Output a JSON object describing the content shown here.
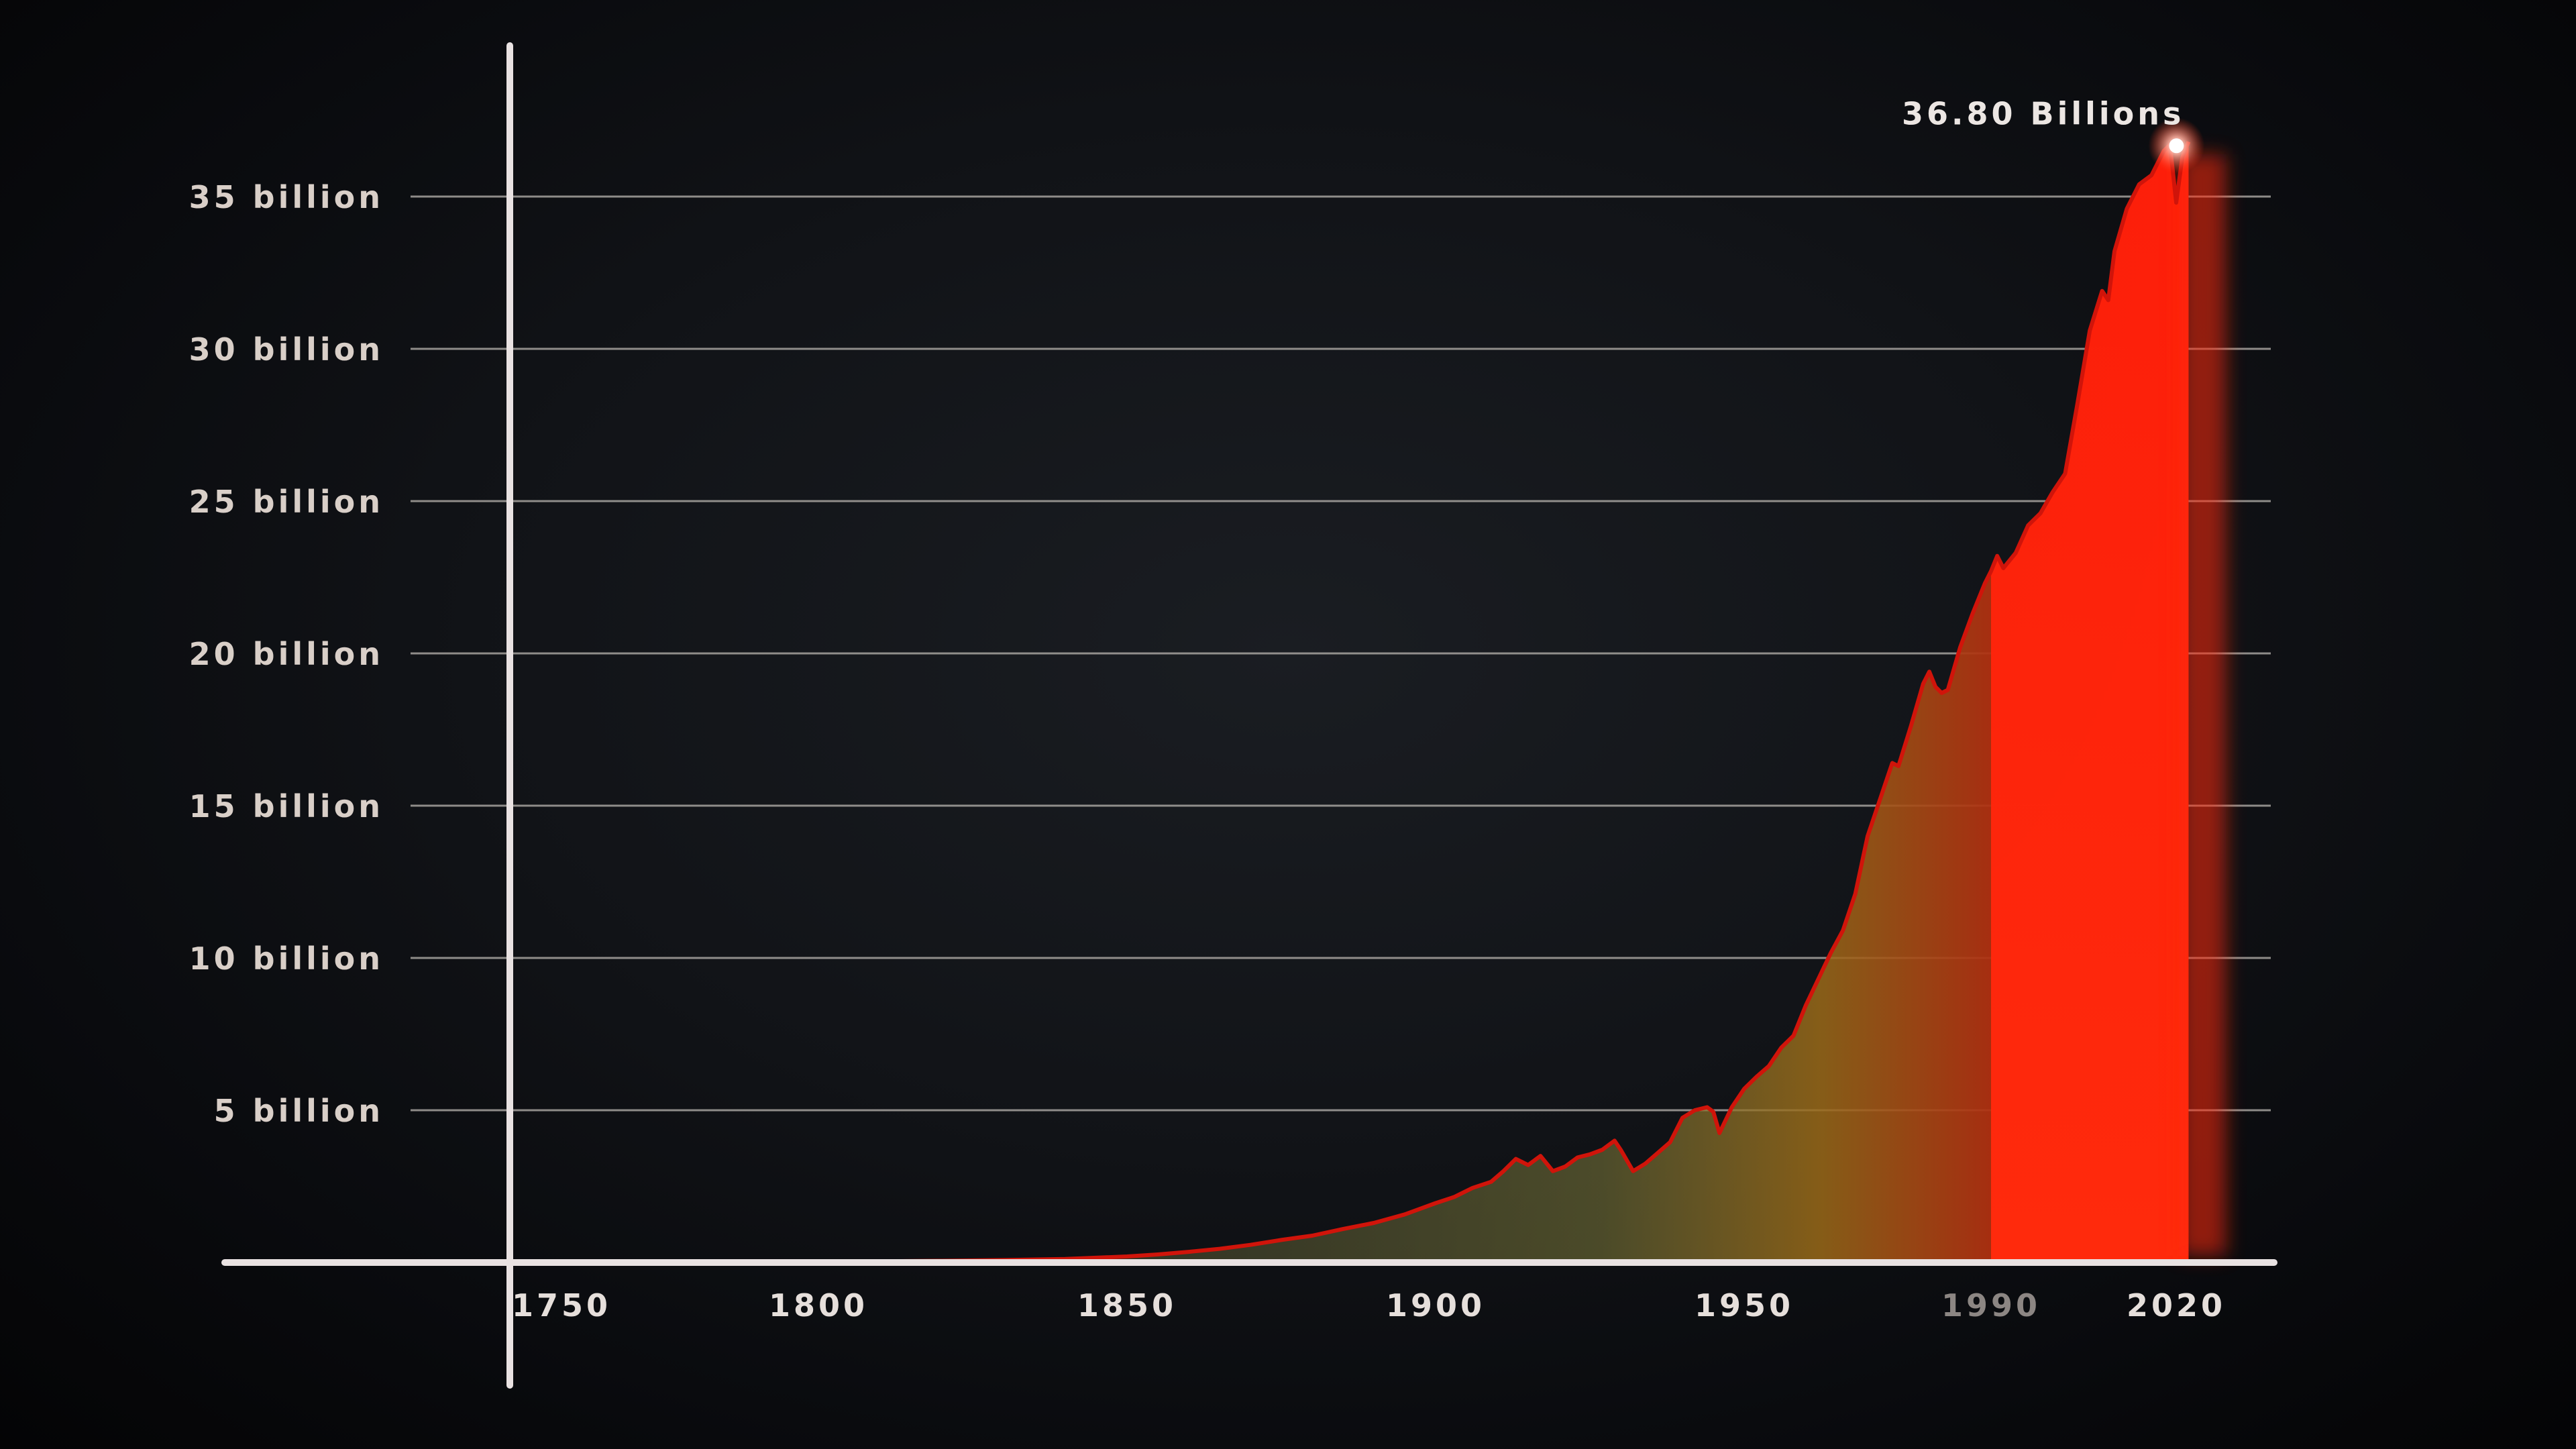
{
  "chart_data": {
    "type": "area",
    "title": "",
    "xlabel": "",
    "ylabel": "",
    "xlim": [
      1740,
      2040
    ],
    "ylim": [
      0,
      35000000000
    ],
    "grid": true,
    "x_ticks": [
      {
        "value": 1750,
        "label": "1750",
        "highlight": false
      },
      {
        "value": 1800,
        "label": "1800",
        "highlight": false
      },
      {
        "value": 1850,
        "label": "1850",
        "highlight": false
      },
      {
        "value": 1900,
        "label": "1900",
        "highlight": false
      },
      {
        "value": 1950,
        "label": "1950",
        "highlight": false
      },
      {
        "value": 1990,
        "label": "1990",
        "highlight": true
      },
      {
        "value": 2020,
        "label": "2020",
        "highlight": false
      }
    ],
    "y_ticks": [
      {
        "value": 5000000000,
        "label": "5 billion"
      },
      {
        "value": 10000000000,
        "label": "10 billion"
      },
      {
        "value": 15000000000,
        "label": "15 billion"
      },
      {
        "value": 20000000000,
        "label": "20 billion"
      },
      {
        "value": 25000000000,
        "label": "25 billion"
      },
      {
        "value": 30000000000,
        "label": "30 billion"
      },
      {
        "value": 35000000000,
        "label": "35 billion"
      }
    ],
    "highlight_range": [
      1990,
      2022
    ],
    "annotation": {
      "x": 2022,
      "y": 36800000000,
      "text": "36.80 Billions"
    },
    "series": [
      {
        "x": [
          1750,
          1760,
          1770,
          1780,
          1790,
          1800,
          1810,
          1820,
          1830,
          1840,
          1850,
          1855,
          1860,
          1865,
          1870,
          1875,
          1880,
          1885,
          1890,
          1895,
          1900,
          1903,
          1906,
          1909,
          1911,
          1913,
          1915,
          1917,
          1919,
          1921,
          1923,
          1925,
          1927,
          1929,
          1930,
          1932,
          1934,
          1936,
          1938,
          1940,
          1942,
          1944,
          1945,
          1946,
          1948,
          1950,
          1952,
          1954,
          1956,
          1958,
          1960,
          1962,
          1964,
          1966,
          1968,
          1970,
          1972,
          1974,
          1975,
          1977,
          1979,
          1980,
          1981,
          1982,
          1983,
          1985,
          1987,
          1989,
          1990,
          1991,
          1992,
          1994,
          1996,
          1998,
          2000,
          2002,
          2004,
          2006,
          2008,
          2009,
          2010,
          2012,
          2014,
          2016,
          2018,
          2019,
          2020,
          2021,
          2022
        ],
        "values": [
          9000000,
          10000000,
          12000000,
          15000000,
          20000000,
          28000000,
          40000000,
          55000000,
          80000000,
          115000000,
          198000000,
          265000000,
          350000000,
          450000000,
          580000000,
          740000000,
          880000000,
          1100000000,
          1300000000,
          1580000000,
          1950000000,
          2150000000,
          2450000000,
          2650000000,
          3000000000,
          3400000000,
          3200000000,
          3500000000,
          3000000000,
          3150000000,
          3450000000,
          3550000000,
          3700000000,
          4000000000,
          3700000000,
          3000000000,
          3250000000,
          3600000000,
          3950000000,
          4750000000,
          5000000000,
          5100000000,
          4950000000,
          4250000000,
          5100000000,
          5700000000,
          6100000000,
          6450000000,
          7050000000,
          7450000000,
          8450000000,
          9300000000,
          10150000000,
          10900000000,
          12100000000,
          14000000000,
          15200000000,
          16400000000,
          16300000000,
          17600000000,
          19000000000,
          19400000000,
          18900000000,
          18700000000,
          18800000000,
          20200000000,
          21300000000,
          22300000000,
          22700000000,
          23200000000,
          22800000000,
          23300000000,
          24200000000,
          24600000000,
          25300000000,
          25900000000,
          28200000000,
          30600000000,
          31900000000,
          31600000000,
          33200000000,
          34600000000,
          35400000000,
          35700000000,
          36500000000,
          36700000000,
          34800000000,
          36300000000,
          36800000000
        ]
      }
    ]
  }
}
